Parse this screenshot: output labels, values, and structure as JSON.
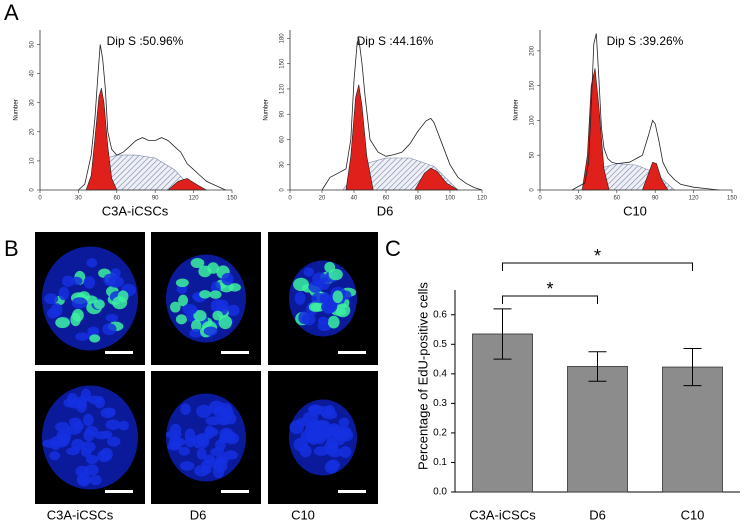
{
  "panel_labels": [
    "A",
    "B",
    "C"
  ],
  "micrographs": {
    "labels": [
      "C3A-iCSCs",
      "D6",
      "C10"
    ]
  },
  "chart_data": [
    {
      "type": "line",
      "title": "Dip S :50.96%",
      "xlabel": "C3A-iCSCs",
      "ylabel": "Number",
      "xlim": [
        0,
        150
      ],
      "xticks": [
        0,
        30,
        60,
        90,
        120,
        150
      ],
      "ylim": [
        0,
        55
      ],
      "yticks": [
        0,
        10,
        20,
        30,
        40,
        50
      ],
      "series": [
        {
          "style": "hatch",
          "color": "#7a86a8",
          "x": [
            38,
            45,
            60,
            75,
            90,
            105,
            120
          ],
          "values": [
            0,
            10,
            12,
            12,
            11,
            7,
            0
          ]
        },
        {
          "style": "area",
          "color": "#e0201a",
          "x": [
            36,
            40,
            43,
            46,
            48,
            50,
            53,
            56,
            60
          ],
          "values": [
            0,
            5,
            18,
            32,
            35,
            30,
            15,
            4,
            0
          ]
        },
        {
          "style": "area",
          "color": "#e0201a",
          "x": [
            100,
            108,
            115,
            122,
            130
          ],
          "values": [
            0,
            3,
            4,
            2,
            0
          ]
        },
        {
          "style": "line",
          "color": "#222222",
          "x": [
            30,
            35,
            40,
            43,
            45,
            47,
            49,
            51,
            53,
            56,
            60,
            65,
            70,
            75,
            80,
            85,
            90,
            95,
            100,
            105,
            110,
            115,
            120,
            125,
            130,
            135,
            140,
            145
          ],
          "values": [
            0,
            2,
            12,
            25,
            38,
            50,
            45,
            35,
            20,
            14,
            12,
            13,
            15,
            17,
            18,
            17,
            17,
            18,
            17,
            15,
            13,
            9,
            7,
            5,
            3,
            2,
            1,
            0
          ]
        }
      ]
    },
    {
      "type": "line",
      "title": "Dip S :44.16%",
      "xlabel": "D6",
      "ylabel": "Number",
      "xlim": [
        0,
        120
      ],
      "xticks": [
        0,
        20,
        40,
        60,
        80,
        100,
        120
      ],
      "ylim": [
        0,
        190
      ],
      "yticks": [
        0,
        30,
        60,
        90,
        120,
        150,
        180
      ],
      "series": [
        {
          "style": "hatch",
          "color": "#7a86a8",
          "x": [
            33,
            45,
            60,
            75,
            90,
            105
          ],
          "values": [
            0,
            30,
            38,
            38,
            28,
            0
          ]
        },
        {
          "style": "area",
          "color": "#e0201a",
          "x": [
            35,
            38,
            41,
            43,
            45,
            48,
            52
          ],
          "values": [
            0,
            40,
            110,
            125,
            100,
            40,
            0
          ]
        },
        {
          "style": "area",
          "color": "#e0201a",
          "x": [
            78,
            84,
            88,
            92,
            98,
            105
          ],
          "values": [
            0,
            20,
            26,
            22,
            8,
            0
          ]
        },
        {
          "style": "line",
          "color": "#222222",
          "x": [
            20,
            25,
            30,
            35,
            38,
            40,
            42,
            43,
            45,
            47,
            50,
            55,
            60,
            65,
            70,
            75,
            80,
            85,
            88,
            90,
            95,
            100,
            105,
            110,
            115,
            120
          ],
          "values": [
            0,
            15,
            20,
            25,
            60,
            130,
            175,
            180,
            150,
            110,
            60,
            45,
            40,
            42,
            45,
            55,
            70,
            82,
            85,
            80,
            55,
            30,
            15,
            8,
            3,
            0
          ]
        }
      ]
    },
    {
      "type": "line",
      "title": "Dip S :39.26%",
      "xlabel": "C10",
      "ylabel": "Number",
      "xlim": [
        0,
        150
      ],
      "xticks": [
        0,
        30,
        60,
        90,
        120,
        150
      ],
      "ylim": [
        0,
        230
      ],
      "yticks": [
        0,
        50,
        100,
        150,
        200
      ],
      "series": [
        {
          "style": "hatch",
          "color": "#7a86a8",
          "x": [
            32,
            45,
            60,
            75,
            90,
            105
          ],
          "values": [
            0,
            30,
            38,
            36,
            25,
            0
          ]
        },
        {
          "style": "area",
          "color": "#e0201a",
          "x": [
            33,
            37,
            40,
            43,
            46,
            50,
            54
          ],
          "values": [
            0,
            50,
            150,
            175,
            120,
            30,
            0
          ]
        },
        {
          "style": "area",
          "color": "#e0201a",
          "x": [
            80,
            85,
            88,
            91,
            95,
            100
          ],
          "values": [
            0,
            25,
            40,
            38,
            15,
            0
          ]
        },
        {
          "style": "line",
          "color": "#222222",
          "x": [
            25,
            30,
            35,
            38,
            40,
            42,
            44,
            46,
            48,
            50,
            53,
            56,
            60,
            70,
            80,
            85,
            88,
            90,
            93,
            96,
            100,
            105,
            110,
            120,
            130,
            140
          ],
          "values": [
            0,
            5,
            10,
            40,
            120,
            210,
            225,
            160,
            90,
            60,
            45,
            40,
            38,
            40,
            50,
            80,
            100,
            95,
            70,
            40,
            25,
            15,
            8,
            4,
            2,
            0
          ]
        }
      ]
    },
    {
      "type": "bar",
      "ylabel": "Percentage of EdU-positive cells",
      "categories": [
        "C3A-iCSCs",
        "D6",
        "C10"
      ],
      "values": [
        0.535,
        0.425,
        0.423
      ],
      "errors": [
        0.085,
        0.05,
        0.063
      ],
      "color": "#8c8c8c",
      "ylim": [
        0,
        0.65
      ],
      "yticks": [
        {
          "value": 0,
          "label": "0.0"
        },
        0.1,
        0.2,
        0.3,
        0.4,
        0.5,
        0.6
      ],
      "annotations": [
        "*",
        "*"
      ]
    }
  ]
}
